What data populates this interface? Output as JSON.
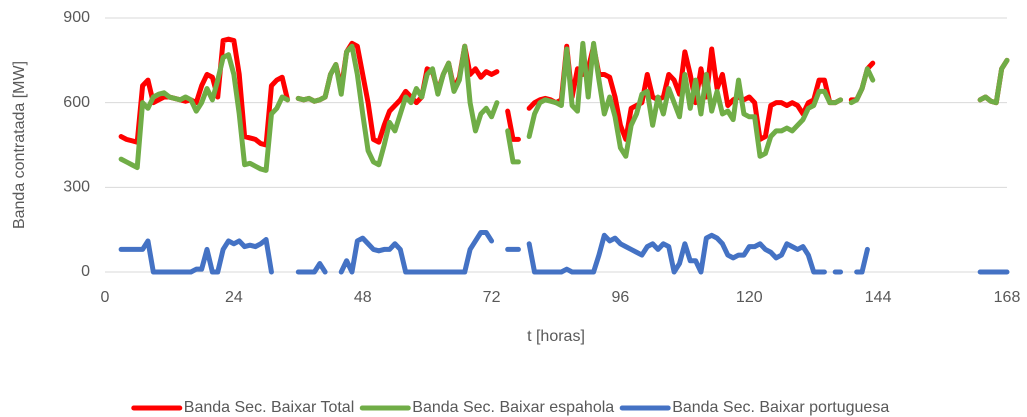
{
  "chart_data": {
    "type": "line",
    "xlabel": "t [horas]",
    "ylabel": "Banda contratada [MW]",
    "xlim": [
      0,
      168
    ],
    "xticks": [
      0,
      24,
      48,
      72,
      96,
      120,
      144,
      168
    ],
    "ylim": [
      0,
      900
    ],
    "yticks": [
      0,
      300,
      600,
      900
    ],
    "grid": true,
    "legend": "bottom",
    "x": [
      3,
      4,
      5,
      6,
      7,
      8,
      9,
      10,
      11,
      12,
      13,
      14,
      15,
      16,
      17,
      18,
      19,
      20,
      21,
      22,
      23,
      24,
      25,
      26,
      27,
      28,
      29,
      30,
      31,
      32,
      33,
      34,
      35,
      36,
      37,
      38,
      39,
      40,
      41,
      42,
      43,
      44,
      45,
      46,
      47,
      48,
      49,
      50,
      51,
      52,
      53,
      54,
      55,
      56,
      57,
      58,
      59,
      60,
      61,
      62,
      63,
      64,
      65,
      66,
      67,
      68,
      69,
      70,
      71,
      72,
      73,
      74,
      75,
      76,
      77,
      78,
      79,
      80,
      81,
      82,
      83,
      84,
      85,
      86,
      87,
      88,
      89,
      90,
      91,
      92,
      93,
      94,
      95,
      96,
      97,
      98,
      99,
      100,
      101,
      102,
      103,
      104,
      105,
      106,
      107,
      108,
      109,
      110,
      111,
      112,
      113,
      114,
      115,
      116,
      117,
      118,
      119,
      120,
      121,
      122,
      123,
      124,
      125,
      126,
      127,
      128,
      129,
      130,
      131,
      132,
      133,
      134,
      135,
      136,
      137,
      138,
      139,
      140,
      141,
      142,
      143,
      144,
      145,
      146,
      147,
      148,
      149,
      150,
      151,
      152,
      153,
      154,
      155,
      156,
      157,
      158,
      159,
      160,
      161,
      162,
      163,
      164,
      165,
      166,
      167,
      168
    ],
    "series": [
      {
        "name": "Banda Sec. Baixar Total",
        "color": "#ff0000",
        "values": [
          480,
          470,
          465,
          460,
          660,
          680,
          600,
          610,
          620,
          620,
          615,
          610,
          605,
          610,
          600,
          660,
          700,
          690,
          620,
          820,
          825,
          820,
          700,
          480,
          475,
          470,
          455,
          450,
          660,
          680,
          690,
          610,
          null,
          615,
          610,
          615,
          605,
          610,
          620,
          700,
          735,
          650,
          780,
          810,
          800,
          700,
          600,
          470,
          460,
          520,
          570,
          590,
          610,
          640,
          620,
          600,
          620,
          720,
          710,
          640,
          700,
          740,
          650,
          690,
          800,
          700,
          720,
          690,
          710,
          700,
          710,
          null,
          570,
          470,
          470,
          null,
          580,
          600,
          610,
          615,
          610,
          600,
          610,
          800,
          620,
          720,
          700,
          720,
          800,
          700,
          700,
          690,
          620,
          520,
          470,
          580,
          590,
          600,
          700,
          620,
          610,
          620,
          700,
          680,
          630,
          780,
          700,
          600,
          720,
          620,
          790,
          650,
          700,
          590,
          610,
          620,
          610,
          620,
          600,
          470,
          480,
          590,
          600,
          600,
          590,
          600,
          590,
          560,
          600,
          610,
          680,
          680,
          600,
          600,
          610,
          null,
          610,
          610,
          650,
          720,
          740,
          null,
          null,
          null,
          null,
          null,
          null,
          null,
          null,
          null,
          null,
          null,
          null,
          null,
          null,
          null,
          null,
          null,
          null,
          null,
          610,
          620,
          605,
          600,
          720,
          750
        ]
      },
      {
        "name": "Banda Sec. Baixar espahola",
        "color": "#70ad47",
        "values": [
          400,
          390,
          380,
          370,
          600,
          580,
          620,
          630,
          635,
          620,
          615,
          610,
          620,
          610,
          570,
          600,
          650,
          610,
          680,
          760,
          770,
          700,
          560,
          380,
          385,
          375,
          365,
          360,
          560,
          580,
          620,
          610,
          null,
          615,
          610,
          615,
          605,
          610,
          620,
          700,
          735,
          630,
          780,
          800,
          700,
          560,
          430,
          390,
          380,
          450,
          530,
          500,
          560,
          620,
          600,
          650,
          620,
          700,
          720,
          630,
          700,
          740,
          640,
          680,
          800,
          600,
          500,
          560,
          580,
          550,
          600,
          null,
          500,
          390,
          390,
          null,
          480,
          560,
          600,
          610,
          605,
          600,
          590,
          790,
          590,
          570,
          810,
          620,
          810,
          680,
          560,
          620,
          550,
          440,
          410,
          520,
          560,
          630,
          640,
          520,
          620,
          560,
          650,
          600,
          550,
          700,
          580,
          680,
          560,
          700,
          570,
          640,
          560,
          570,
          540,
          680,
          560,
          550,
          550,
          410,
          420,
          480,
          500,
          500,
          510,
          500,
          520,
          540,
          580,
          590,
          640,
          640,
          600,
          600,
          610,
          null,
          600,
          610,
          650,
          720,
          680,
          null,
          null,
          null,
          null,
          null,
          null,
          null,
          null,
          null,
          null,
          null,
          null,
          null,
          null,
          null,
          null,
          null,
          null,
          null,
          610,
          620,
          605,
          600,
          720,
          750
        ]
      },
      {
        "name": "Banda Sec. Baixar portuguesa",
        "color": "#4472c4",
        "values": [
          80,
          80,
          80,
          80,
          80,
          110,
          0,
          0,
          0,
          0,
          0,
          0,
          0,
          0,
          10,
          10,
          80,
          0,
          0,
          80,
          110,
          100,
          110,
          90,
          95,
          90,
          100,
          115,
          0,
          null,
          null,
          null,
          null,
          0,
          0,
          0,
          0,
          30,
          0,
          null,
          null,
          0,
          40,
          0,
          110,
          120,
          100,
          80,
          75,
          80,
          80,
          100,
          80,
          0,
          0,
          0,
          0,
          0,
          0,
          0,
          0,
          0,
          0,
          0,
          0,
          80,
          110,
          140,
          140,
          110,
          null,
          null,
          80,
          80,
          80,
          null,
          100,
          0,
          0,
          0,
          0,
          0,
          0,
          10,
          0,
          0,
          0,
          0,
          0,
          60,
          130,
          110,
          120,
          100,
          90,
          80,
          70,
          60,
          90,
          100,
          80,
          100,
          90,
          0,
          30,
          100,
          40,
          40,
          0,
          120,
          130,
          120,
          100,
          60,
          50,
          60,
          60,
          90,
          90,
          100,
          80,
          70,
          50,
          60,
          100,
          90,
          80,
          90,
          60,
          0,
          0,
          0,
          null,
          0,
          0,
          null,
          null,
          0,
          0,
          80,
          null,
          null,
          null,
          null,
          null,
          null,
          null,
          null,
          null,
          null,
          null,
          null,
          null,
          null,
          null,
          null,
          null,
          null,
          null,
          null,
          0,
          0,
          0,
          0,
          0,
          0
        ]
      }
    ]
  }
}
